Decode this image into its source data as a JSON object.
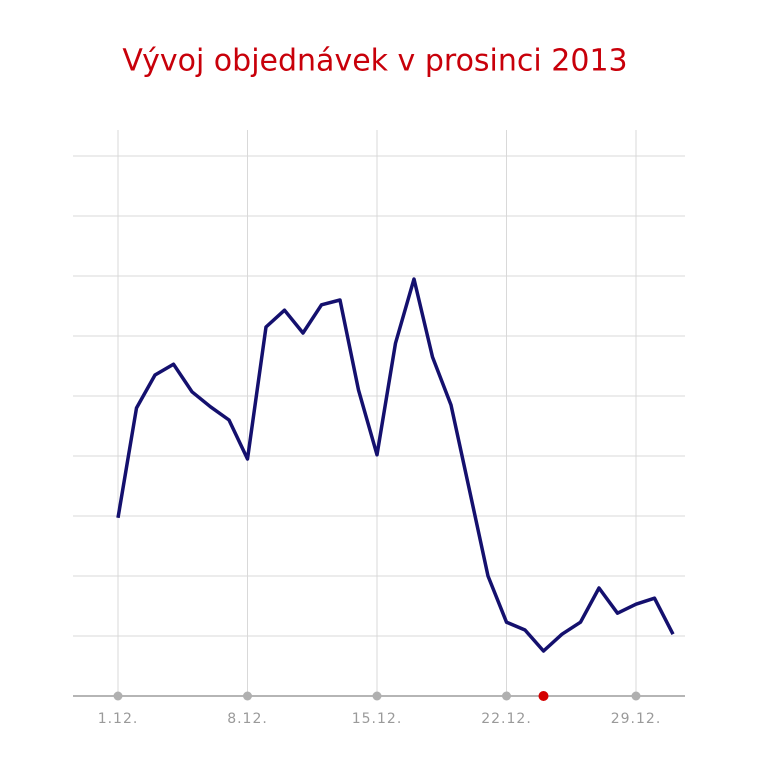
{
  "chart_data": {
    "type": "line",
    "title": "Vývoj objednávek v prosinci 2013",
    "categories": [
      "1.12.",
      null,
      null,
      null,
      null,
      null,
      null,
      "8.12.",
      null,
      null,
      null,
      null,
      null,
      null,
      "15.12.",
      null,
      null,
      null,
      null,
      null,
      null,
      "22.12.",
      null,
      null,
      null,
      null,
      null,
      null,
      "29.12.",
      null,
      null
    ],
    "series": [
      {
        "color": "#14106e",
        "values": [
          2.97,
          4.8,
          5.35,
          5.53,
          5.07,
          4.82,
          4.6,
          3.95,
          6.15,
          6.43,
          6.05,
          6.52,
          6.6,
          5.1,
          4.02,
          5.88,
          6.95,
          5.65,
          4.85,
          3.43,
          2.0,
          1.23,
          1.1,
          0.75,
          1.03,
          1.23,
          1.8,
          1.38,
          1.53,
          1.63,
          1.03
        ]
      }
    ],
    "ylim": [
      0,
      9
    ],
    "yticks": [
      1,
      2,
      3,
      4,
      5,
      6,
      7,
      8,
      9
    ],
    "grid": true,
    "highlight": {
      "index": 23,
      "color": "#d40000"
    }
  }
}
